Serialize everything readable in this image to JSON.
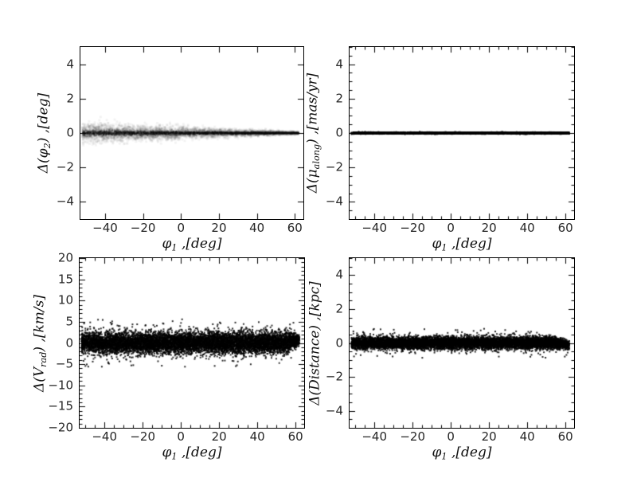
{
  "figure": {
    "background": "#ffffff",
    "axis_color": "#000000",
    "tick_label_color": "#262626",
    "marker_color": "#000000",
    "layout": "2x2 grid of residual scatter plots versus stream longitude"
  },
  "chart_data": [
    {
      "id": "delta-phi2",
      "position": "top-left",
      "type": "scatter",
      "render_style": "density",
      "title": "",
      "xlabel_text": "φ₁ ,[deg]",
      "ylabel_text": "Δ(φ₂) ,[deg]",
      "xlabel_segments": [
        {
          "t": "φ"
        },
        {
          "t": "1",
          "sub": true
        },
        {
          "t": " ,[deg]"
        }
      ],
      "ylabel_segments": [
        {
          "t": "Δ(φ"
        },
        {
          "t": "2",
          "sub": true
        },
        {
          "t": ") ,[deg]"
        }
      ],
      "xlim": [
        -53,
        64.5
      ],
      "ylim": [
        -5,
        5
      ],
      "xticks": [
        -40,
        -20,
        0,
        20,
        40,
        60
      ],
      "yticks": [
        -4,
        -2,
        0,
        2,
        4
      ],
      "x_minor_step": null,
      "y_minor_step": null,
      "grid": false,
      "legend": null,
      "band": {
        "summary": "grey density band of residuals centered on 0; half-width ~0.6 deg at phi1=-52 tapering to ~0.08 deg at phi1=62 with a dark core line",
        "x_range": [
          -52,
          62
        ],
        "center": 0,
        "sigma_at_left": 0.28,
        "sigma_at_right": 0.035,
        "taper_start_x": -52,
        "mean_shift_at_right": 0,
        "n_points": 4500,
        "marker_px": 3,
        "alpha": 0.05,
        "core_pass": {
          "n_points": 2600,
          "sigma_scale": 0.28,
          "marker_px": 2,
          "alpha": 0.2
        },
        "outliers": null
      }
    },
    {
      "id": "delta-mu-along",
      "position": "top-right",
      "type": "scatter",
      "render_style": "solid-line-band",
      "title": "",
      "xlabel_text": "φ₁ ,[deg]",
      "ylabel_text": "Δ(μ_along) ,[mas/yr]",
      "xlabel_segments": [
        {
          "t": "φ"
        },
        {
          "t": "1",
          "sub": true
        },
        {
          "t": " ,[deg]"
        }
      ],
      "ylabel_segments": [
        {
          "t": "Δ(μ"
        },
        {
          "t": "along",
          "sub": true
        },
        {
          "t": ") ,[mas/yr]"
        }
      ],
      "xlim": [
        -53,
        64.5
      ],
      "ylim": [
        -5,
        5
      ],
      "xticks": [
        -40,
        -20,
        0,
        20,
        40,
        60
      ],
      "yticks": [
        -4,
        -2,
        0,
        2,
        4
      ],
      "x_minor_step": 5,
      "y_minor_step": 0.5,
      "grid": false,
      "legend": null,
      "band": {
        "summary": "extremely tight black band of residuals at 0 (appears as a ~3px thick horizontal line) spanning phi1=-52..62",
        "x_range": [
          -52,
          62
        ],
        "center": 0,
        "sigma_at_left": 0.022,
        "sigma_at_right": 0.022,
        "taper_start_x": -52,
        "mean_shift_at_right": 0,
        "n_points": 4000,
        "marker_px": 2,
        "alpha": 0.9,
        "core_pass": null,
        "outliers": null
      }
    },
    {
      "id": "delta-vrad",
      "position": "bottom-left",
      "type": "scatter",
      "render_style": "points",
      "title": "",
      "xlabel_text": "φ₁ ,[deg]",
      "ylabel_text": "Δ(V_rad) ,[km/s]",
      "xlabel_segments": [
        {
          "t": "φ"
        },
        {
          "t": "1",
          "sub": true
        },
        {
          "t": " ,[deg]"
        }
      ],
      "ylabel_segments": [
        {
          "t": "Δ(V"
        },
        {
          "t": "rad",
          "sub": true
        },
        {
          "t": ") ,[km/s]"
        }
      ],
      "xlim": [
        -53,
        64.5
      ],
      "ylim": [
        -20,
        20
      ],
      "xticks": [
        -40,
        -20,
        0,
        20,
        40,
        60
      ],
      "yticks": [
        -20,
        -15,
        -10,
        -5,
        0,
        5,
        10,
        15,
        20
      ],
      "x_minor_step": 5,
      "y_minor_step": 1,
      "grid": false,
      "legend": null,
      "band": {
        "summary": "dense black scatter of radial-velocity residuals centered on 0, core ~+/-2.5 km/s, sparse outliers to ~+/-5.5 km/s; band tightens and shifts up ~+0.7 km/s near phi1=60",
        "x_range": [
          -52,
          62
        ],
        "center": 0,
        "sigma_at_left": 1.25,
        "sigma_at_right": 0.72,
        "taper_start_x": 54,
        "mean_shift_at_right": 0.7,
        "n_points": 9000,
        "marker_px": 2,
        "alpha": 0.8,
        "core_pass": null,
        "outliers": {
          "n": 70,
          "min_abs": 3.2,
          "max_abs": 5.6
        }
      }
    },
    {
      "id": "delta-distance",
      "position": "bottom-right",
      "type": "scatter",
      "render_style": "points",
      "title": "",
      "xlabel_text": "φ₁ ,[deg]",
      "ylabel_text": "Δ(Distance) ,[kpc]",
      "xlabel_segments": [
        {
          "t": "φ"
        },
        {
          "t": "1",
          "sub": true
        },
        {
          "t": " ,[deg]"
        }
      ],
      "ylabel_segments": [
        {
          "t": "Δ(Distance) ,[kpc]"
        }
      ],
      "xlim": [
        -53,
        64.5
      ],
      "ylim": [
        -5,
        5
      ],
      "xticks": [
        -40,
        -20,
        0,
        20,
        40,
        60
      ],
      "yticks": [
        -4,
        -2,
        0,
        2,
        4
      ],
      "x_minor_step": 5,
      "y_minor_step": 0.5,
      "grid": false,
      "legend": null,
      "band": {
        "summary": "dense black scatter of distance residuals centered on 0, core ~+/-0.4 kpc, occasional points to ~+/-0.9 kpc; slight tightening and small dip below 0 at phi1~62",
        "x_range": [
          -52,
          62
        ],
        "center": 0,
        "sigma_at_left": 0.18,
        "sigma_at_right": 0.12,
        "taper_start_x": 54,
        "mean_shift_at_right": -0.12,
        "n_points": 9000,
        "marker_px": 2,
        "alpha": 0.8,
        "core_pass": null,
        "outliers": {
          "n": 50,
          "min_abs": 0.5,
          "max_abs": 0.88
        }
      }
    }
  ]
}
